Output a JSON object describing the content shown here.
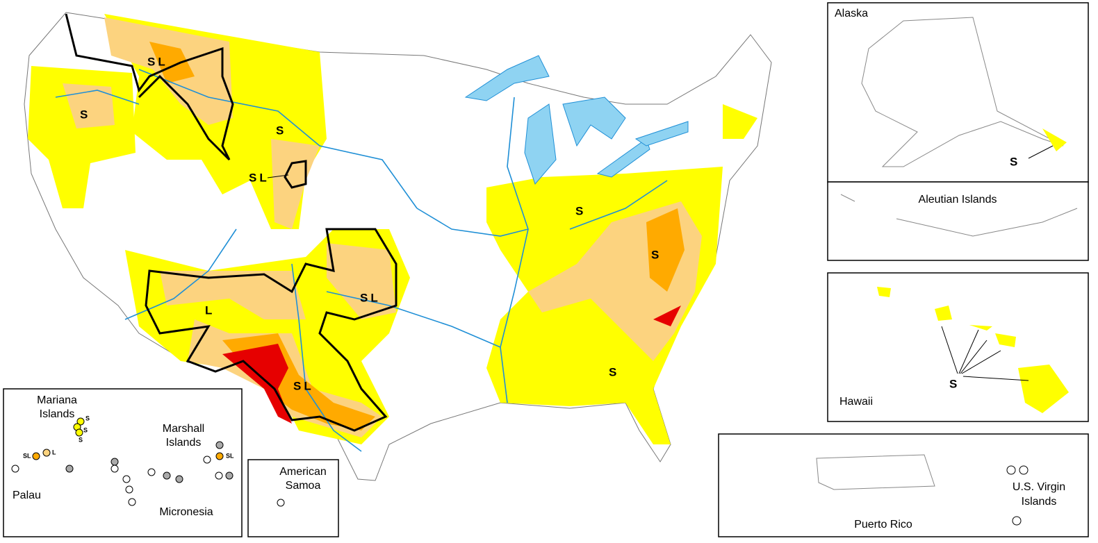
{
  "contiguous_us": {
    "labels": [
      "SL",
      "S",
      "S",
      "SL",
      "L",
      "SL",
      "SL",
      "S",
      "S",
      "S"
    ]
  },
  "alaska": {
    "title": "Alaska",
    "labels": [
      "S"
    ]
  },
  "aleutian_islands": {
    "title": "Aleutian Islands"
  },
  "hawaii": {
    "title": "Hawaii",
    "labels": [
      "S"
    ]
  },
  "puerto_rico": {
    "title": "Puerto Rico"
  },
  "virgin_islands": {
    "title_lines": [
      "U.S. Virgin",
      "Islands"
    ]
  },
  "pacific": {
    "mariana_lines": [
      "Mariana",
      "Islands"
    ],
    "marshall_lines": [
      "Marshall",
      "Islands"
    ],
    "palau": "Palau",
    "micronesia": "Micronesia",
    "point_labels": [
      "S",
      "S",
      "S",
      "SL",
      "L",
      "SL"
    ]
  },
  "american_samoa": {
    "title_lines": [
      "American",
      "Samoa"
    ]
  }
}
